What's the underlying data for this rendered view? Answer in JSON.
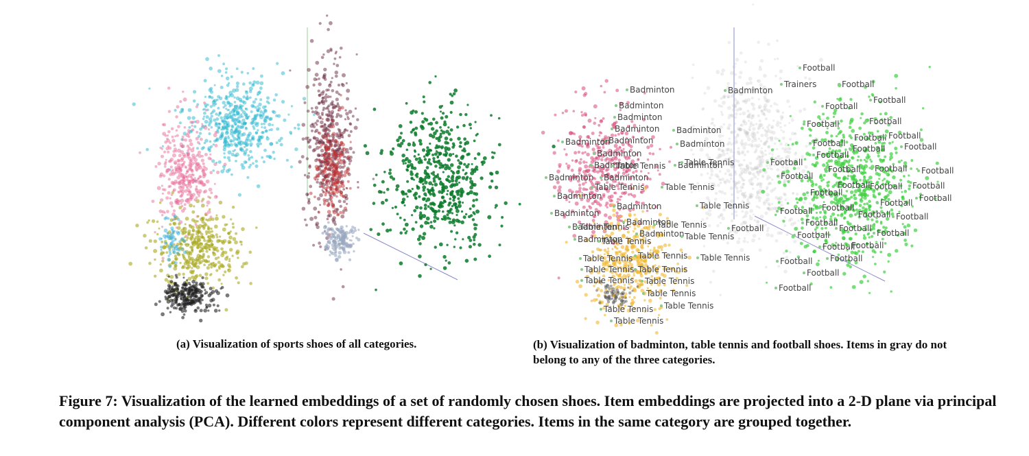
{
  "panel_a": {
    "caption": "(a) Visualization of sports shoes of all categories."
  },
  "panel_b": {
    "caption": "(b) Visualization of badminton, table tennis and football shoes. Items in gray do not belong to any of the three categories.",
    "labels": [
      "Football",
      "Football",
      "Football",
      "Football",
      "Football",
      "Football",
      "Football",
      "Football",
      "Football",
      "Football",
      "Football",
      "Football",
      "Football",
      "Football",
      "Football",
      "Football",
      "Football",
      "Football",
      "Football",
      "Football",
      "Football",
      "Football",
      "Football",
      "Football",
      "Football",
      "Football",
      "Football",
      "Football",
      "Football",
      "Football",
      "Football",
      "Football",
      "Football",
      "Football",
      "Football",
      "Football",
      "Football",
      "Football",
      "Trainers",
      "Badminton",
      "Badminton",
      "Badminton",
      "Badminton",
      "Badminton",
      "Badminton",
      "Badminton",
      "Badminton",
      "Badminton",
      "Badminton",
      "Badminton",
      "Badminton",
      "Badminton",
      "Badminton",
      "Badminton",
      "Badminton",
      "Badminton",
      "Badminton",
      "Badminton",
      "Badminton",
      "Badminton",
      "Table Tennis",
      "Table Tennis",
      "Table Tennis",
      "Table Tennis",
      "Table Tennis",
      "Table Tennis",
      "Table Tennis",
      "Table Tennis",
      "Table Tennis",
      "Table Tennis",
      "Table Tennis",
      "Table Tennis",
      "Table Tennis",
      "Table Tennis",
      "Table Tennis",
      "Table Tennis",
      "Table Tennis",
      "Table Tennis",
      "Table Tennis",
      "Table Tennis"
    ]
  },
  "figure_caption": "Figure 7: Visualization of the learned embeddings of a set of randomly chosen shoes. Item embeddings are projected into a 2-D plane via principal component analysis (PCA). Different colors represent different categories. Items in the same category are grouped together."
}
